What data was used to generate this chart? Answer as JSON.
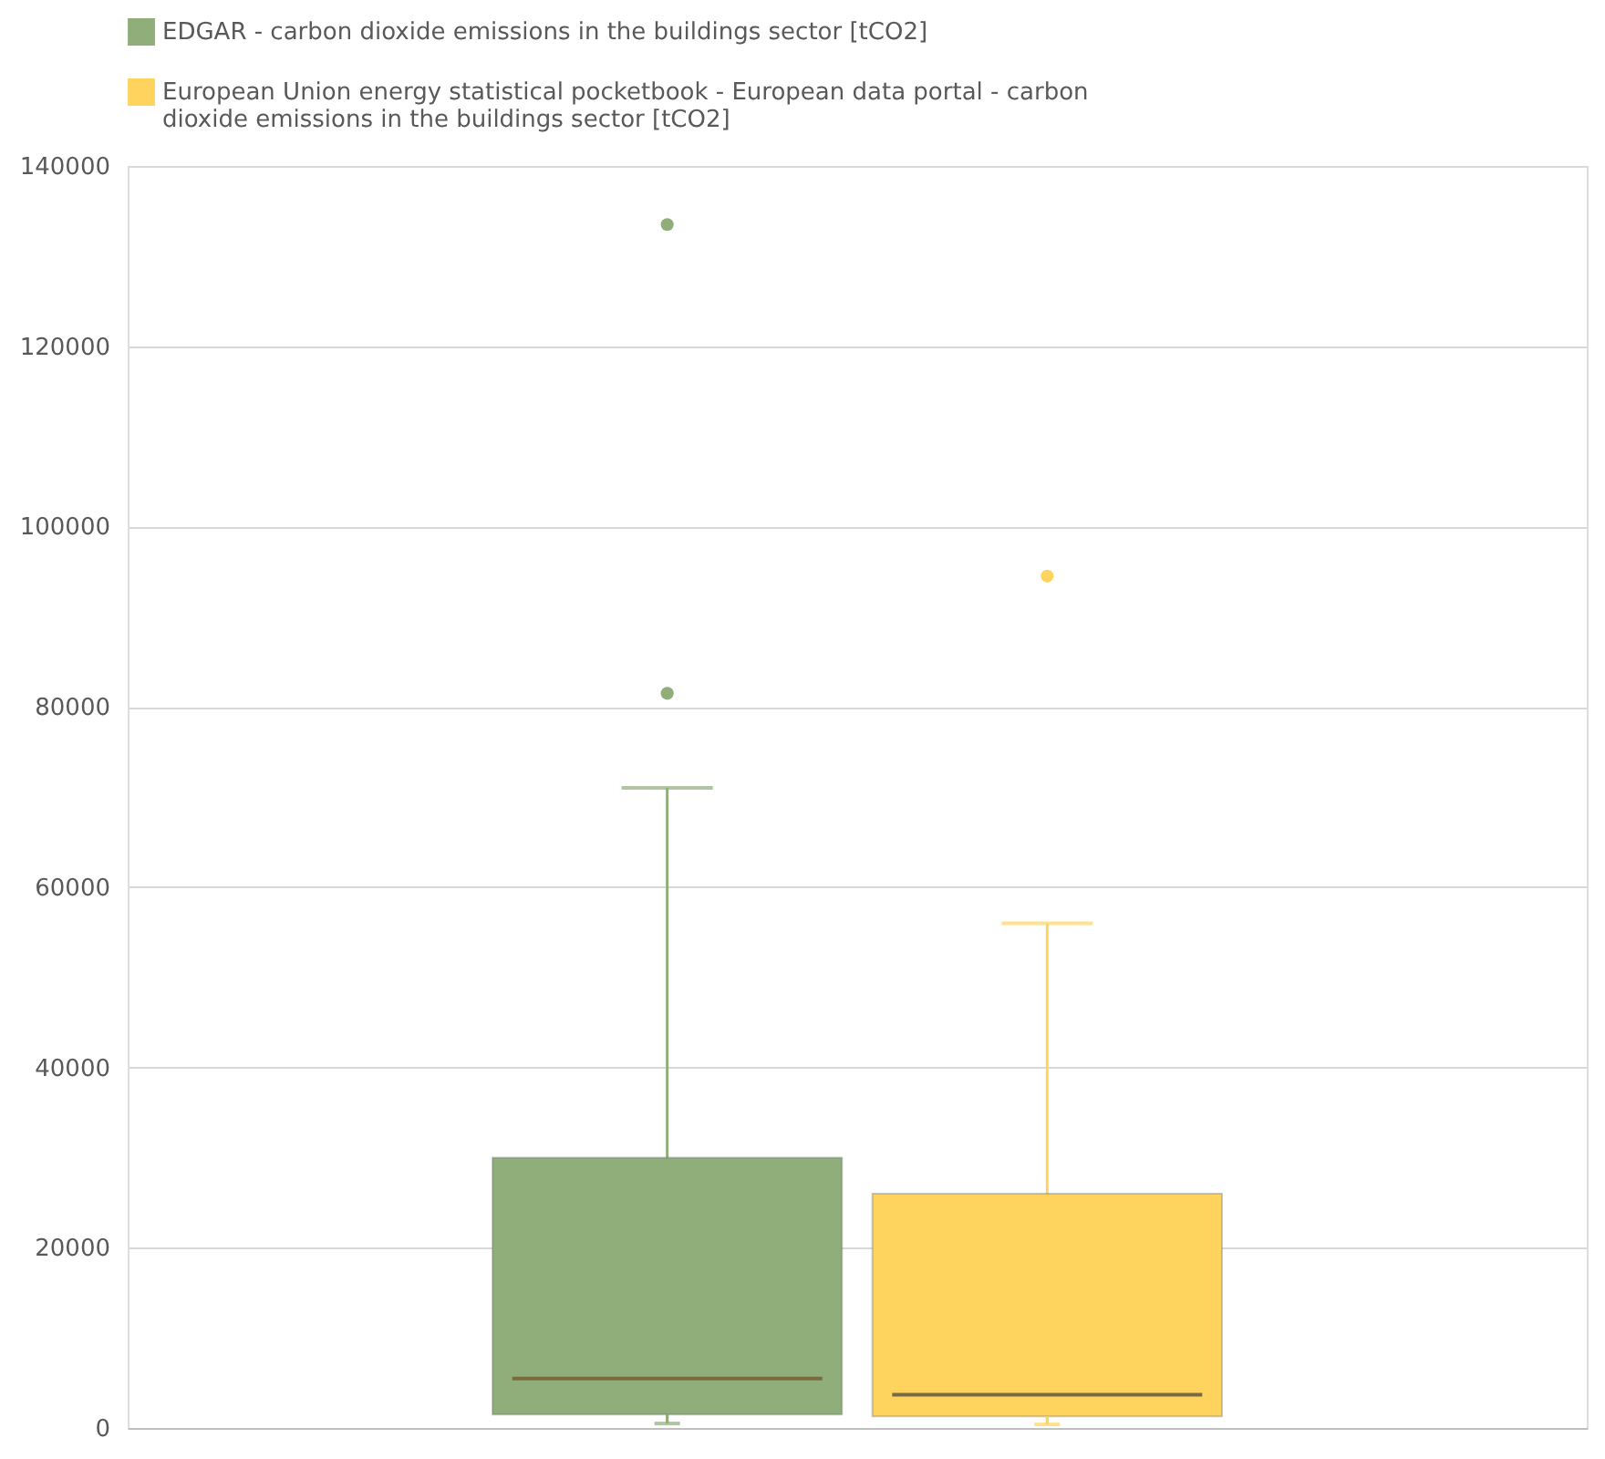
{
  "chart_data": {
    "type": "box",
    "categories": [
      null
    ],
    "series": [
      {
        "name": "EDGAR - carbon dioxide emissions in the buildings sector [tCO2]",
        "color": "#8fae7a",
        "boxes": [
          {
            "low": 500,
            "q1": 1500,
            "median": 5500,
            "q3": 30000,
            "high": 71000,
            "outliers": [
              81500,
              133500
            ]
          }
        ]
      },
      {
        "name": "European Union energy statistical pocketbook - European data portal - carbon dioxide emissions in the buildings sector [tCO2]",
        "color": "#ffd45e",
        "boxes": [
          {
            "low": 400,
            "q1": 1300,
            "median": 3700,
            "q3": 26000,
            "high": 56000,
            "outliers": [
              94500
            ]
          }
        ]
      }
    ],
    "ylim": [
      0,
      140000
    ],
    "yticks": [
      0,
      20000,
      40000,
      60000,
      80000,
      100000,
      120000,
      140000
    ],
    "grid": "y",
    "legend": "top",
    "tick_labels": "y"
  }
}
